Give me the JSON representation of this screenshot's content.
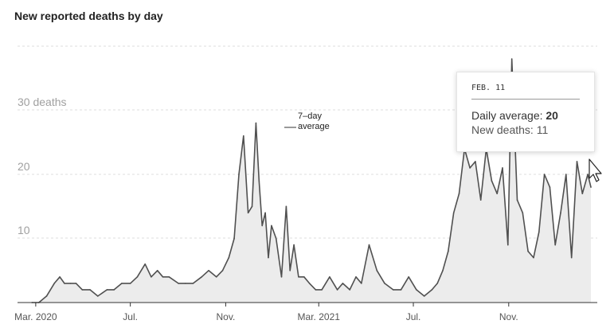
{
  "title": "New reported deaths by day",
  "annotation": {
    "line1": "7–day",
    "line2": "average"
  },
  "tooltip": {
    "date": "FEB. 11",
    "avg_label": "Daily average:",
    "avg_value": "20",
    "new_label": "New deaths:",
    "new_value": "11"
  },
  "colors": {
    "line": "#505050",
    "fill": "#ececec",
    "grid": "#dddddd"
  },
  "chart_data": {
    "type": "area",
    "title": "New reported deaths by day",
    "xlabel": "",
    "ylabel": "",
    "ylim": [
      0,
      40
    ],
    "y_ticks": [
      {
        "value": 30,
        "label": "30 deaths"
      },
      {
        "value": 20,
        "label": "20"
      },
      {
        "value": 10,
        "label": "10"
      }
    ],
    "x_ticks": [
      {
        "date": "2020-03-01",
        "label": "Mar. 2020"
      },
      {
        "date": "2020-07-01",
        "label": "Jul."
      },
      {
        "date": "2020-11-01",
        "label": "Nov."
      },
      {
        "date": "2021-03-01",
        "label": "Mar. 2021"
      },
      {
        "date": "2021-07-01",
        "label": "Jul."
      },
      {
        "date": "2021-11-01",
        "label": "Nov."
      }
    ],
    "x_range": [
      "2020-02-25",
      "2022-02-15"
    ],
    "grid": true,
    "series": [
      {
        "x": [
          "2020-02-25",
          "2020-03-05",
          "2020-03-15",
          "2020-03-25",
          "2020-04-01",
          "2020-04-07",
          "2020-04-15",
          "2020-04-22",
          "2020-04-30",
          "2020-05-10",
          "2020-05-20",
          "2020-06-01",
          "2020-06-10",
          "2020-06-20",
          "2020-07-01",
          "2020-07-10",
          "2020-07-20",
          "2020-07-28",
          "2020-08-05",
          "2020-08-12",
          "2020-08-20",
          "2020-09-01",
          "2020-09-10",
          "2020-09-20",
          "2020-10-01",
          "2020-10-10",
          "2020-10-20",
          "2020-10-28",
          "2020-11-05",
          "2020-11-12",
          "2020-11-18",
          "2020-11-24",
          "2020-11-30",
          "2020-12-05",
          "2020-12-10",
          "2020-12-14",
          "2020-12-18",
          "2020-12-22",
          "2020-12-26",
          "2020-12-30",
          "2021-01-05",
          "2021-01-12",
          "2021-01-18",
          "2021-01-23",
          "2021-01-28",
          "2021-02-03",
          "2021-02-10",
          "2021-02-17",
          "2021-02-25",
          "2021-03-05",
          "2021-03-15",
          "2021-03-25",
          "2021-04-01",
          "2021-04-10",
          "2021-04-18",
          "2021-04-25",
          "2021-05-05",
          "2021-05-15",
          "2021-05-25",
          "2021-06-05",
          "2021-06-15",
          "2021-06-25",
          "2021-07-05",
          "2021-07-15",
          "2021-07-25",
          "2021-08-01",
          "2021-08-08",
          "2021-08-15",
          "2021-08-22",
          "2021-08-29",
          "2021-09-05",
          "2021-09-12",
          "2021-09-19",
          "2021-09-26",
          "2021-10-03",
          "2021-10-10",
          "2021-10-17",
          "2021-10-24",
          "2021-10-31",
          "2021-11-05",
          "2021-11-12",
          "2021-11-19",
          "2021-11-26",
          "2021-12-03",
          "2021-12-10",
          "2021-12-17",
          "2021-12-24",
          "2021-12-31",
          "2022-01-07",
          "2022-01-14",
          "2022-01-21",
          "2022-01-28",
          "2022-02-04",
          "2022-02-11",
          "2022-02-15"
        ],
        "values": [
          0,
          0,
          1,
          3,
          4,
          3,
          3,
          3,
          2,
          2,
          1,
          2,
          2,
          3,
          3,
          4,
          6,
          4,
          5,
          4,
          4,
          3,
          3,
          3,
          4,
          5,
          4,
          5,
          7,
          10,
          20,
          26,
          14,
          15,
          28,
          19,
          12,
          14,
          7,
          12,
          10,
          4,
          15,
          5,
          9,
          4,
          4,
          3,
          2,
          2,
          4,
          2,
          3,
          2,
          4,
          3,
          9,
          5,
          3,
          2,
          2,
          4,
          2,
          1,
          2,
          3,
          5,
          8,
          14,
          17,
          24,
          21,
          22,
          16,
          24,
          19,
          17,
          21,
          9,
          38,
          16,
          14,
          8,
          7,
          11,
          20,
          18,
          9,
          14,
          20,
          7,
          22,
          17,
          20,
          18
        ]
      }
    ]
  }
}
